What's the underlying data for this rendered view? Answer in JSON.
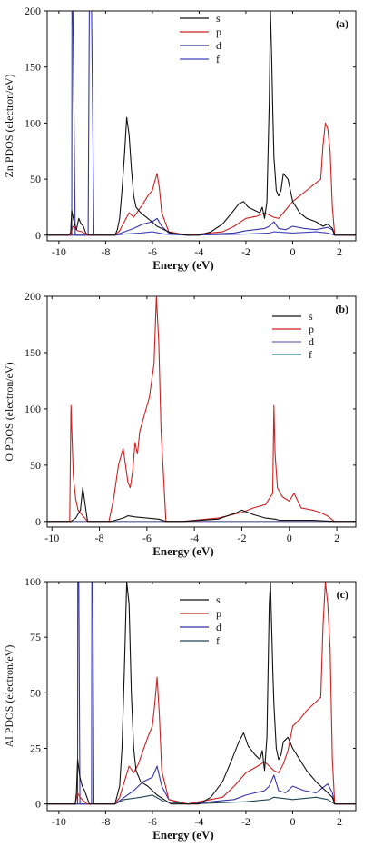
{
  "chart_data": [
    {
      "type": "line",
      "panel_label": "(a)",
      "xlabel": "Energy (eV)",
      "ylabel": "Zn PDOS (electron/eV)",
      "xlim": [
        -10.5,
        2.7
      ],
      "ylim": [
        -5,
        200
      ],
      "xticks": [
        -10,
        -8,
        -6,
        -4,
        -2,
        0,
        2
      ],
      "yticks": [
        0,
        50,
        100,
        150,
        200
      ],
      "legend": "upper-center",
      "series": [
        {
          "name": "s",
          "color": "#111111",
          "x": [
            -10.5,
            -9.6,
            -9.5,
            -9.45,
            -9.35,
            -9.25,
            -9.15,
            -9.05,
            -8.95,
            -8.85,
            -8.8,
            -8.7,
            -7.6,
            -7.5,
            -7.4,
            -7.3,
            -7.2,
            -7.1,
            -7.0,
            -6.9,
            -6.8,
            -6.7,
            -6.5,
            -6.2,
            -5.8,
            -5.5,
            -5.2,
            -4.5,
            -4.0,
            -3.5,
            -3.0,
            -2.6,
            -2.3,
            -2.1,
            -1.9,
            -1.6,
            -1.4,
            -1.3,
            -1.2,
            -1.1,
            -1.0,
            -0.95,
            -0.9,
            -0.85,
            -0.8,
            -0.75,
            -0.7,
            -0.6,
            -0.5,
            -0.4,
            -0.2,
            0.0,
            0.3,
            0.6,
            1.0,
            1.3,
            1.5,
            1.7,
            1.8,
            2.7
          ],
          "y": [
            0,
            0,
            2,
            22,
            12,
            5,
            15,
            10,
            8,
            2,
            1,
            0,
            0,
            5,
            15,
            40,
            70,
            105,
            90,
            60,
            35,
            25,
            20,
            15,
            8,
            5,
            2,
            0,
            0,
            3,
            10,
            20,
            28,
            30,
            25,
            22,
            20,
            25,
            15,
            30,
            120,
            200,
            160,
            110,
            70,
            55,
            40,
            35,
            40,
            55,
            50,
            30,
            20,
            15,
            12,
            8,
            10,
            6,
            0,
            0
          ]
        },
        {
          "name": "p",
          "color": "#cc2222",
          "x": [
            -10.5,
            -9.5,
            -9.4,
            -9.3,
            -9.2,
            -9.0,
            -8.8,
            -7.6,
            -7.4,
            -7.2,
            -7.0,
            -6.8,
            -6.6,
            -6.4,
            -6.2,
            -6.0,
            -5.9,
            -5.8,
            -5.7,
            -5.6,
            -5.3,
            -4.5,
            -3.0,
            -2.5,
            -2.0,
            -1.5,
            -1.2,
            -1.0,
            -0.8,
            -0.6,
            -0.4,
            -0.2,
            0.0,
            0.3,
            0.6,
            0.9,
            1.2,
            1.3,
            1.4,
            1.5,
            1.6,
            1.7,
            1.8,
            2.7
          ],
          "y": [
            0,
            0,
            8,
            6,
            4,
            3,
            0,
            0,
            4,
            12,
            20,
            16,
            22,
            28,
            35,
            40,
            48,
            55,
            42,
            20,
            3,
            0,
            3,
            8,
            15,
            17,
            20,
            18,
            16,
            15,
            20,
            25,
            30,
            35,
            40,
            45,
            50,
            80,
            100,
            95,
            75,
            25,
            0,
            0
          ]
        },
        {
          "name": "d",
          "color": "#3333aa",
          "x": [
            -10.5,
            -9.45,
            -9.44,
            -9.4,
            -9.3,
            -8.75,
            -8.7,
            -8.6,
            -8.5,
            -7.6,
            -7.2,
            -6.8,
            -6.4,
            -6.0,
            -5.8,
            -5.6,
            -5.3,
            -4.5,
            -2.5,
            -2.0,
            -1.2,
            -1.0,
            -0.8,
            -0.6,
            -0.3,
            0.0,
            0.5,
            1.0,
            1.5,
            1.7,
            1.8,
            2.7
          ],
          "y": [
            0,
            0,
            200,
            200,
            0,
            0,
            200,
            200,
            0,
            0,
            3,
            6,
            10,
            12,
            15,
            8,
            2,
            0,
            2,
            4,
            6,
            8,
            12,
            6,
            5,
            8,
            6,
            5,
            7,
            5,
            0,
            0
          ]
        },
        {
          "name": "f",
          "color": "#4444bb",
          "x": [
            -10.5,
            -7.6,
            -7.2,
            -6.5,
            -6.0,
            -5.5,
            -4.5,
            -2.0,
            -1.0,
            -0.8,
            0.0,
            1.0,
            1.5,
            1.8,
            2.7
          ],
          "y": [
            0,
            0,
            1,
            2,
            3,
            1,
            0,
            1,
            2,
            3,
            2,
            3,
            2,
            0,
            0
          ]
        }
      ]
    },
    {
      "type": "line",
      "panel_label": "(b)",
      "xlabel": "Energy (eV)",
      "ylabel": "O PDOS (electron/eV)",
      "xlim": [
        -10.2,
        2.8
      ],
      "ylim": [
        -5,
        200
      ],
      "xticks": [
        -10,
        -8,
        -6,
        -4,
        -2,
        0,
        2
      ],
      "yticks": [
        0,
        50,
        100,
        150,
        200
      ],
      "legend": "top-right",
      "series": [
        {
          "name": "s",
          "color": "#111111",
          "x": [
            -10.2,
            -9.2,
            -9.0,
            -8.8,
            -8.7,
            -8.6,
            -8.5,
            -7.5,
            -7.0,
            -6.8,
            -6.5,
            -6.0,
            -5.5,
            -5.2,
            -4.5,
            -3.0,
            -2.2,
            -2.0,
            -1.5,
            -1.0,
            -0.6,
            -0.4,
            0.0,
            1.0,
            1.9,
            2.8
          ],
          "y": [
            0,
            0,
            3,
            10,
            30,
            15,
            0,
            0,
            3,
            5,
            4,
            3,
            2,
            0,
            0,
            2,
            8,
            10,
            6,
            3,
            2,
            1,
            1,
            1,
            0,
            0
          ]
        },
        {
          "name": "p",
          "color": "#cc2222",
          "x": [
            -10.2,
            -9.25,
            -9.2,
            -9.1,
            -9.0,
            -8.9,
            -8.5,
            -7.6,
            -7.4,
            -7.2,
            -7.0,
            -6.8,
            -6.7,
            -6.6,
            -6.5,
            -6.4,
            -6.3,
            -6.1,
            -5.9,
            -5.7,
            -5.6,
            -5.5,
            -5.4,
            -5.3,
            -5.2,
            -4.5,
            -3.0,
            -2.0,
            -1.5,
            -1.0,
            -0.7,
            -0.65,
            -0.6,
            -0.5,
            -0.3,
            0.0,
            0.2,
            0.5,
            1.0,
            1.3,
            1.6,
            1.9,
            2.8
          ],
          "y": [
            0,
            0,
            103,
            40,
            20,
            10,
            0,
            0,
            20,
            50,
            65,
            35,
            30,
            45,
            70,
            60,
            80,
            95,
            110,
            140,
            200,
            160,
            80,
            40,
            0,
            0,
            3,
            8,
            12,
            15,
            25,
            103,
            60,
            30,
            22,
            18,
            25,
            12,
            10,
            8,
            5,
            0,
            0
          ]
        },
        {
          "name": "d",
          "color": "#7766aa",
          "x": [
            -10.2,
            2.8
          ],
          "y": [
            0,
            0
          ]
        },
        {
          "name": "f",
          "color": "#228888",
          "x": [
            -10.2,
            2.8
          ],
          "y": [
            0,
            0
          ]
        }
      ]
    },
    {
      "type": "line",
      "panel_label": "(c)",
      "xlabel": "Energy (eV)",
      "ylabel": "Al PDOS (electron/eV)",
      "xlim": [
        -10.5,
        2.7
      ],
      "ylim": [
        -3,
        100
      ],
      "xticks": [
        -10,
        -8,
        -6,
        -4,
        -2,
        0,
        2
      ],
      "yticks": [
        0,
        25,
        50,
        75,
        100
      ],
      "legend": "upper-center",
      "series": [
        {
          "name": "s",
          "color": "#111111",
          "x": [
            -10.5,
            -9.3,
            -9.25,
            -9.2,
            -9.1,
            -9.0,
            -8.9,
            -8.8,
            -8.7,
            -7.6,
            -7.4,
            -7.3,
            -7.2,
            -7.1,
            -7.0,
            -6.9,
            -6.8,
            -6.7,
            -6.5,
            -6.2,
            -5.8,
            -5.5,
            -5.2,
            -4.5,
            -4.0,
            -3.5,
            -3.0,
            -2.6,
            -2.3,
            -2.1,
            -1.9,
            -1.6,
            -1.4,
            -1.3,
            -1.2,
            -1.1,
            -1.0,
            -0.95,
            -0.9,
            -0.85,
            -0.8,
            -0.75,
            -0.7,
            -0.6,
            -0.5,
            -0.4,
            -0.2,
            0.0,
            0.3,
            0.6,
            1.0,
            1.3,
            1.5,
            1.7,
            1.8,
            2.7
          ],
          "y": [
            0,
            0,
            5,
            20,
            12,
            8,
            6,
            3,
            0,
            0,
            8,
            25,
            60,
            100,
            90,
            50,
            25,
            15,
            10,
            8,
            4,
            2,
            0,
            0,
            0,
            3,
            10,
            20,
            28,
            32,
            26,
            22,
            20,
            24,
            15,
            30,
            90,
            100,
            80,
            60,
            45,
            35,
            25,
            20,
            22,
            28,
            30,
            25,
            20,
            15,
            10,
            7,
            5,
            3,
            0,
            0
          ]
        },
        {
          "name": "p",
          "color": "#cc2222",
          "x": [
            -10.5,
            -9.3,
            -9.2,
            -9.1,
            -9.0,
            -8.8,
            -7.6,
            -7.4,
            -7.2,
            -7.0,
            -6.8,
            -6.6,
            -6.4,
            -6.2,
            -6.0,
            -5.9,
            -5.8,
            -5.7,
            -5.6,
            -5.3,
            -4.5,
            -3.0,
            -2.5,
            -2.0,
            -1.5,
            -1.2,
            -1.0,
            -0.8,
            -0.6,
            -0.4,
            -0.2,
            0.0,
            0.3,
            0.6,
            0.9,
            1.2,
            1.3,
            1.4,
            1.5,
            1.6,
            1.7,
            1.8,
            2.7
          ],
          "y": [
            0,
            0,
            5,
            3,
            2,
            0,
            0,
            3,
            10,
            17,
            14,
            18,
            24,
            30,
            35,
            45,
            57,
            40,
            15,
            2,
            0,
            3,
            8,
            14,
            17,
            19,
            17,
            15,
            14,
            18,
            24,
            35,
            38,
            42,
            45,
            48,
            80,
            100,
            90,
            70,
            20,
            0,
            0
          ]
        },
        {
          "name": "d",
          "color": "#3333aa",
          "x": [
            -10.5,
            -9.2,
            -9.19,
            -9.15,
            -9.1,
            -8.6,
            -8.59,
            -8.55,
            -8.5,
            -7.6,
            -7.2,
            -6.8,
            -6.4,
            -6.0,
            -5.8,
            -5.6,
            -5.3,
            -4.5,
            -2.5,
            -2.0,
            -1.2,
            -1.0,
            -0.8,
            -0.6,
            -0.3,
            0.0,
            0.5,
            1.0,
            1.5,
            1.7,
            1.8,
            2.7
          ],
          "y": [
            0,
            0,
            100,
            100,
            0,
            0,
            100,
            100,
            0,
            0,
            3,
            6,
            10,
            12,
            17,
            8,
            2,
            0,
            2,
            4,
            6,
            8,
            13,
            6,
            5,
            8,
            6,
            5,
            9,
            5,
            0,
            0
          ]
        },
        {
          "name": "f",
          "color": "#224455",
          "x": [
            -10.5,
            -7.6,
            -7.2,
            -6.5,
            -6.0,
            -5.5,
            -4.5,
            -2.0,
            -1.0,
            -0.8,
            0.0,
            1.0,
            1.5,
            1.8,
            2.7
          ],
          "y": [
            0,
            0,
            2,
            3,
            4,
            1,
            0,
            1,
            2,
            3,
            2,
            3,
            2,
            0,
            0
          ]
        }
      ]
    }
  ]
}
